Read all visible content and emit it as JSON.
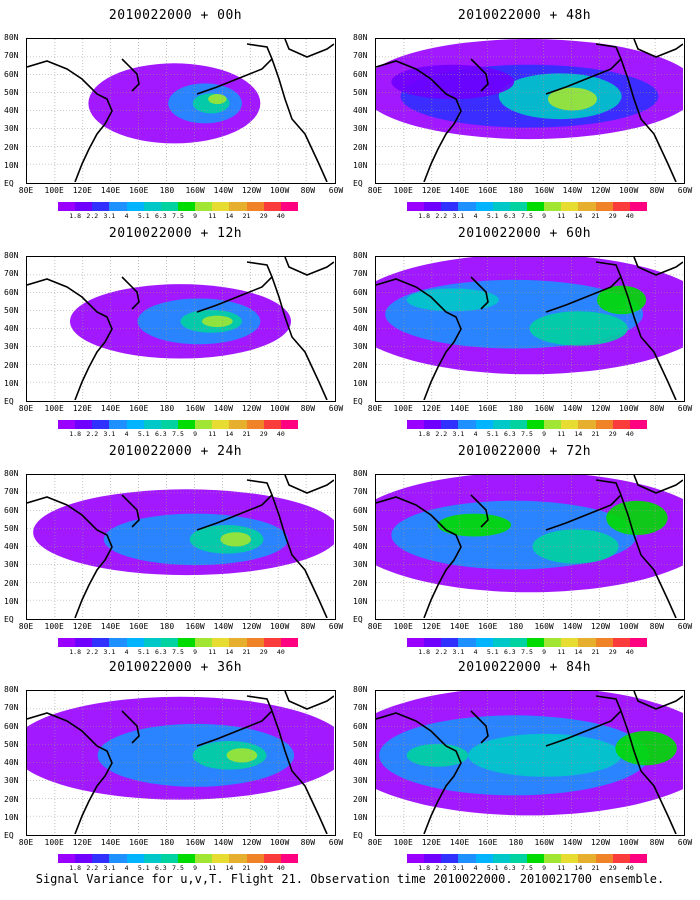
{
  "panels": [
    {
      "title": "2010022000 + 00h",
      "key": "p00"
    },
    {
      "title": "2010022000 + 48h",
      "key": "p48"
    },
    {
      "title": "2010022000 + 12h",
      "key": "p12"
    },
    {
      "title": "2010022000 + 60h",
      "key": "p60"
    },
    {
      "title": "2010022000 + 24h",
      "key": "p24"
    },
    {
      "title": "2010022000 + 72h",
      "key": "p72"
    },
    {
      "title": "2010022000 + 36h",
      "key": "p36"
    },
    {
      "title": "2010022000 + 84h",
      "key": "p84"
    }
  ],
  "lat_labels": [
    "80N",
    "70N",
    "60N",
    "50N",
    "40N",
    "30N",
    "20N",
    "10N",
    "EQ"
  ],
  "lon_labels": [
    "80E",
    "100E",
    "120E",
    "140E",
    "160E",
    "180",
    "160W",
    "140W",
    "120W",
    "100W",
    "80W",
    "60W"
  ],
  "colorbar": {
    "labels": [
      "1.8",
      "2.2",
      "3.1",
      "4",
      "5.1",
      "6.3",
      "7.5",
      "9",
      "11",
      "14",
      "21",
      "29",
      "40"
    ],
    "colors": [
      "#9900ff",
      "#6f00ff",
      "#3030ff",
      "#1e90ff",
      "#00b4ff",
      "#00c8c8",
      "#00d2a0",
      "#00dc00",
      "#a0e632",
      "#e6dc32",
      "#e6af2d",
      "#f08228",
      "#fa3c3c",
      "#ff0080"
    ]
  },
  "caption": "Signal Variance for u,v,T. Flight 21. Observation time 2010022000. 2010021700 ensemble."
}
